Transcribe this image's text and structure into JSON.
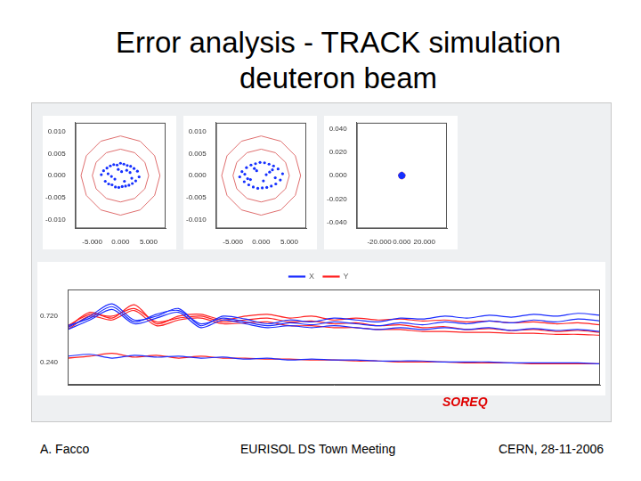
{
  "slide": {
    "title": [
      "Error analysis - TRACK simulation",
      "deuteron beam"
    ],
    "annotation": "SOREQ",
    "footer": [
      "A. Facco",
      "EURISOL DS Town Meeting",
      "CERN, 28-11-2006"
    ]
  },
  "chart_data": [
    {
      "type": "scatter",
      "grid": false,
      "xlim": [
        -8,
        8
      ],
      "xticks": [
        {
          "value": -5,
          "label": "-5.000"
        },
        {
          "value": 0,
          "label": "0.000"
        },
        {
          "value": 5,
          "label": "5.000"
        }
      ],
      "ylim": [
        -0.012,
        0.012
      ],
      "yticks": [
        {
          "value": -0.01,
          "label": "-0.010"
        },
        {
          "value": -0.005,
          "label": "-0.005"
        },
        {
          "value": 0,
          "label": "0.000"
        },
        {
          "value": 0.005,
          "label": "0.005"
        },
        {
          "value": 0.01,
          "label": "0.010"
        }
      ],
      "series": [
        {
          "color": "#1530ff",
          "marker": "point",
          "x": [
            -3.4,
            -3.0,
            -2.7,
            -2.4,
            -2.1,
            -1.8,
            -1.5,
            -1.2,
            -0.9,
            -0.6,
            -0.3,
            0.0,
            0.3,
            0.6,
            0.9,
            1.2,
            1.5,
            1.8,
            2.1,
            2.4,
            2.7,
            3.0,
            3.3,
            -2.2,
            -1.0,
            0.2,
            1.1,
            2.0,
            -1.6,
            0.7,
            1.7,
            -0.4
          ],
          "values": [
            0.0002,
            0.0011,
            -0.0013,
            0.0017,
            -0.0019,
            0.0022,
            -0.0021,
            0.0025,
            -0.0026,
            0.0024,
            -0.0027,
            0.0028,
            -0.0025,
            0.0026,
            -0.0024,
            0.0023,
            -0.0022,
            0.0021,
            -0.0018,
            0.0016,
            -0.0012,
            0.001,
            -0.0003,
            0.0004,
            -0.0008,
            0.0009,
            0.0012,
            -0.0006,
            -0.0002,
            -0.0013,
            0.0007,
            0.0014
          ]
        },
        {
          "color": "#e07070",
          "line_style": "solid",
          "x": [
            5,
            4.33,
            2.5,
            0,
            -2.5,
            -4.33,
            -5,
            -4.33,
            -2.5,
            0,
            2.5,
            4.33,
            5
          ],
          "values": [
            0,
            0.003,
            0.0052,
            0.006,
            0.0052,
            0.003,
            0,
            -0.003,
            -0.0052,
            -0.006,
            -0.0052,
            -0.003,
            0
          ]
        },
        {
          "color": "#e07070",
          "line_style": "solid",
          "x": [
            7,
            6.06,
            3.5,
            0,
            -3.5,
            -6.06,
            -7,
            -6.06,
            -3.5,
            0,
            3.5,
            6.06,
            7
          ],
          "values": [
            0,
            0.0045,
            0.0078,
            0.009,
            0.0078,
            0.0045,
            0,
            -0.0045,
            -0.0078,
            -0.009,
            -0.0078,
            -0.0045,
            0
          ]
        }
      ]
    },
    {
      "type": "scatter",
      "grid": false,
      "xlim": [
        -8,
        8
      ],
      "xticks": [
        {
          "value": -5,
          "label": "-5.000"
        },
        {
          "value": 0,
          "label": "0.000"
        },
        {
          "value": 5,
          "label": "5.000"
        }
      ],
      "ylim": [
        -0.012,
        0.012
      ],
      "yticks": [
        {
          "value": -0.01,
          "label": "-0.010"
        },
        {
          "value": -0.005,
          "label": "-0.005"
        },
        {
          "value": 0,
          "label": "0.000"
        },
        {
          "value": 0.005,
          "label": "0.005"
        },
        {
          "value": 0.01,
          "label": "0.010"
        }
      ],
      "series": [
        {
          "color": "#1530ff",
          "marker": "point",
          "x": [
            -3.8,
            -3.4,
            -3.0,
            -2.6,
            -2.2,
            -1.8,
            -1.4,
            -1.0,
            -0.6,
            -0.2,
            0.2,
            0.6,
            1.0,
            1.4,
            1.8,
            2.2,
            2.6,
            3.0,
            3.4,
            3.8,
            -2.9,
            -1.9,
            -0.8,
            0.4,
            1.5,
            2.5,
            -1.2,
            0.9,
            2.0,
            -2.4
          ],
          "values": [
            -0.0003,
            0.0009,
            -0.0014,
            0.0018,
            -0.0021,
            0.0024,
            -0.0026,
            0.0027,
            -0.0029,
            0.003,
            -0.0028,
            0.0029,
            -0.0027,
            0.0026,
            -0.0024,
            0.0022,
            -0.0019,
            0.0015,
            -0.001,
            0.0004,
            0.0003,
            -0.0009,
            0.0011,
            -0.0012,
            0.0008,
            -0.0005,
            0.0016,
            0.0002,
            0.0013,
            -0.0007
          ]
        },
        {
          "color": "#e07070",
          "line_style": "solid",
          "x": [
            5,
            4.33,
            2.5,
            0,
            -2.5,
            -4.33,
            -5,
            -4.33,
            -2.5,
            0,
            2.5,
            4.33,
            5
          ],
          "values": [
            0,
            0.003,
            0.0052,
            0.006,
            0.0052,
            0.003,
            0,
            -0.003,
            -0.0052,
            -0.006,
            -0.0052,
            -0.003,
            0
          ]
        },
        {
          "color": "#e07070",
          "line_style": "solid",
          "x": [
            7,
            6.06,
            3.5,
            0,
            -3.5,
            -6.06,
            -7,
            -6.06,
            -3.5,
            0,
            3.5,
            6.06,
            7
          ],
          "values": [
            0,
            0.0045,
            0.0078,
            0.009,
            0.0078,
            0.0045,
            0,
            -0.0045,
            -0.0078,
            -0.009,
            -0.0078,
            -0.0045,
            0
          ]
        }
      ]
    },
    {
      "type": "scatter",
      "grid": false,
      "xlim": [
        -40,
        40
      ],
      "xticks": [
        {
          "value": -20,
          "label": "-20.000"
        },
        {
          "value": 0,
          "label": "0.000"
        },
        {
          "value": 20,
          "label": "20.000"
        }
      ],
      "ylim": [
        -0.045,
        0.045
      ],
      "yticks": [
        {
          "value": -0.04,
          "label": "-0.040"
        },
        {
          "value": -0.02,
          "label": "-0.020"
        },
        {
          "value": 0,
          "label": "0.000"
        },
        {
          "value": 0.02,
          "label": "0.020"
        },
        {
          "value": 0.04,
          "label": "0.040"
        }
      ],
      "series": [
        {
          "color": "#1530ff",
          "marker": "point",
          "x": [
            -2.0,
            -1.5,
            -1.0,
            -0.5,
            0.0,
            0.5,
            1.0,
            1.5,
            2.0,
            -1.2,
            0.8,
            -0.3,
            1.3,
            -1.7,
            0.3
          ],
          "values": [
            0.0003,
            -0.0012,
            0.0015,
            -0.0018,
            0.002,
            -0.0017,
            0.0014,
            -0.001,
            0.0002,
            -0.0005,
            0.0008,
            -0.0009,
            0.0006,
            -0.0002,
            0.0011
          ]
        },
        {
          "color": "#e07070",
          "line_style": "solid",
          "x": [
            3,
            2.6,
            1.5,
            0,
            -1.5,
            -2.6,
            -3,
            -2.6,
            -1.5,
            0,
            1.5,
            2.6,
            3
          ],
          "values": [
            0,
            0.0015,
            0.0026,
            0.003,
            0.0026,
            0.0015,
            0,
            -0.0015,
            -0.0026,
            -0.003,
            -0.0026,
            -0.0015,
            0
          ]
        }
      ]
    },
    {
      "type": "line",
      "grid": false,
      "legend": "top",
      "tick_labels": "y",
      "x": [
        0,
        1,
        2,
        3,
        4,
        5,
        6,
        7,
        8,
        9,
        10,
        11,
        12,
        13,
        14,
        15,
        16,
        17,
        18,
        19,
        20,
        21,
        22,
        23,
        24
      ],
      "xlim": [
        0,
        24
      ],
      "ylim": [
        0,
        1.0
      ],
      "yticks": [
        {
          "value": 0.24,
          "label": "0.240"
        },
        {
          "value": 0.72,
          "label": "0.720"
        }
      ],
      "series": [
        {
          "name": "X",
          "color": "#1a2cff",
          "runs": [
            [
              0.62,
              0.7,
              0.82,
              0.66,
              0.74,
              0.78,
              0.64,
              0.7,
              0.66,
              0.62,
              0.65,
              0.63,
              0.66,
              0.64,
              0.62,
              0.65,
              0.63,
              0.66,
              0.64,
              0.67,
              0.65,
              0.68,
              0.66,
              0.69,
              0.67
            ],
            [
              0.6,
              0.72,
              0.85,
              0.68,
              0.72,
              0.8,
              0.62,
              0.72,
              0.69,
              0.64,
              0.68,
              0.66,
              0.7,
              0.68,
              0.66,
              0.7,
              0.69,
              0.72,
              0.7,
              0.73,
              0.71,
              0.74,
              0.72,
              0.75,
              0.73
            ],
            [
              0.58,
              0.68,
              0.79,
              0.64,
              0.7,
              0.76,
              0.6,
              0.68,
              0.64,
              0.6,
              0.62,
              0.6,
              0.62,
              0.6,
              0.58,
              0.6,
              0.58,
              0.6,
              0.58,
              0.6,
              0.57,
              0.59,
              0.57,
              0.58,
              0.56
            ],
            [
              0.3,
              0.32,
              0.28,
              0.31,
              0.29,
              0.3,
              0.28,
              0.29,
              0.27,
              0.28,
              0.26,
              0.27,
              0.26,
              0.26,
              0.25,
              0.25,
              0.25,
              0.24,
              0.24,
              0.24,
              0.23,
              0.23,
              0.23,
              0.23,
              0.22
            ]
          ]
        },
        {
          "name": "Y",
          "color": "#ff2020",
          "runs": [
            [
              0.62,
              0.74,
              0.72,
              0.8,
              0.66,
              0.7,
              0.72,
              0.66,
              0.68,
              0.7,
              0.66,
              0.67,
              0.64,
              0.65,
              0.62,
              0.63,
              0.6,
              0.61,
              0.58,
              0.59,
              0.57,
              0.58,
              0.56,
              0.57,
              0.55
            ],
            [
              0.6,
              0.76,
              0.7,
              0.84,
              0.64,
              0.72,
              0.74,
              0.68,
              0.72,
              0.74,
              0.7,
              0.72,
              0.68,
              0.7,
              0.68,
              0.69,
              0.67,
              0.68,
              0.66,
              0.67,
              0.65,
              0.66,
              0.64,
              0.65,
              0.63
            ],
            [
              0.58,
              0.72,
              0.68,
              0.78,
              0.62,
              0.68,
              0.7,
              0.64,
              0.65,
              0.66,
              0.62,
              0.62,
              0.6,
              0.6,
              0.58,
              0.58,
              0.56,
              0.56,
              0.55,
              0.55,
              0.54,
              0.54,
              0.53,
              0.53,
              0.52
            ],
            [
              0.28,
              0.3,
              0.33,
              0.29,
              0.31,
              0.28,
              0.3,
              0.28,
              0.28,
              0.27,
              0.27,
              0.26,
              0.26,
              0.25,
              0.25,
              0.24,
              0.24,
              0.24,
              0.23,
              0.23,
              0.23,
              0.22,
              0.22,
              0.22,
              0.22
            ]
          ]
        }
      ]
    }
  ]
}
